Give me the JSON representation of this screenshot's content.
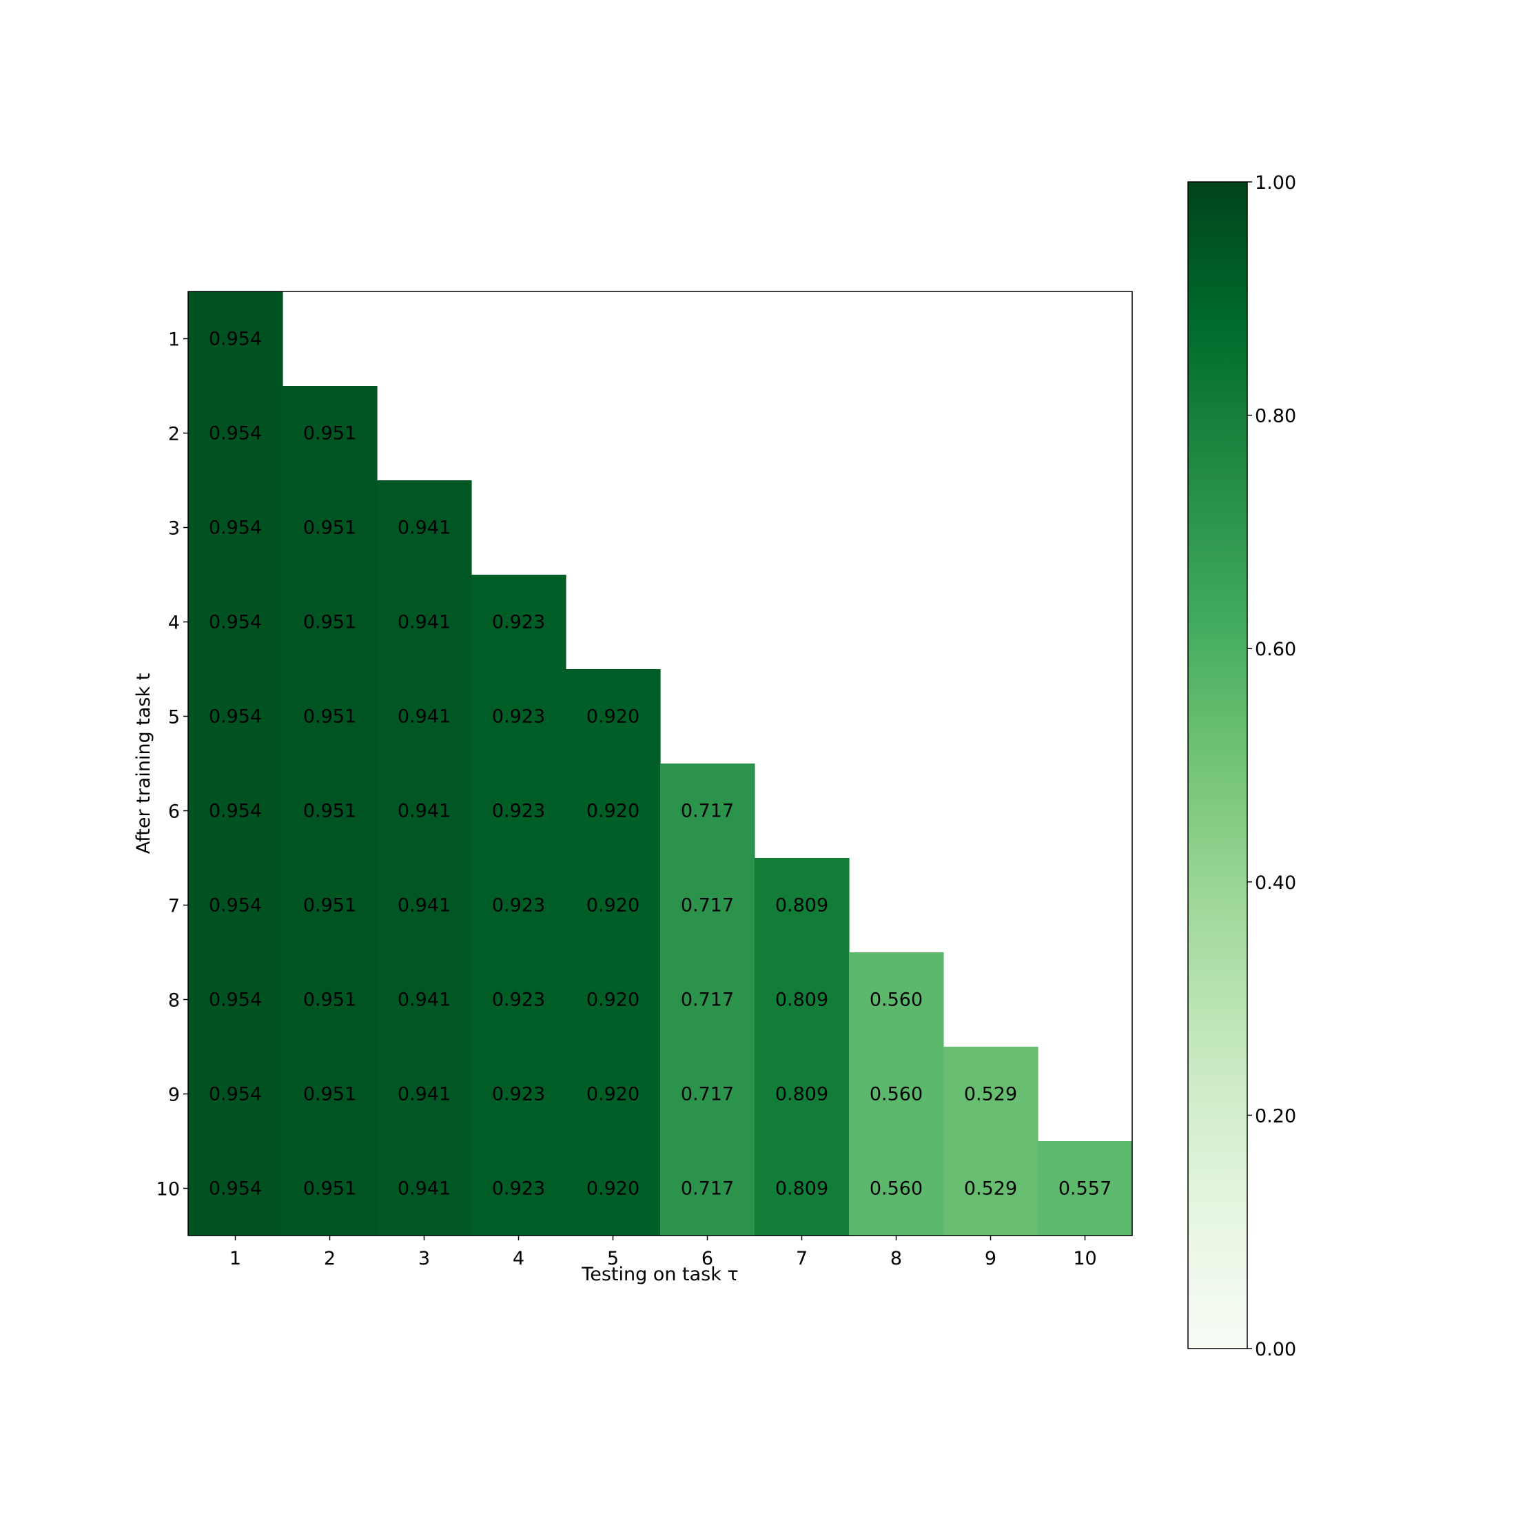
{
  "chart_data": {
    "type": "heatmap",
    "title": "",
    "xlabel": "Testing on task τ",
    "ylabel": "After training task t",
    "x_ticks": [
      "1",
      "2",
      "3",
      "4",
      "5",
      "6",
      "7",
      "8",
      "9",
      "10"
    ],
    "y_ticks": [
      "1",
      "2",
      "3",
      "4",
      "5",
      "6",
      "7",
      "8",
      "9",
      "10"
    ],
    "colormap": "Greens",
    "vmin": 0,
    "vmax": 1,
    "colorbar_ticks": [
      "0.00",
      "0.20",
      "0.40",
      "0.60",
      "0.80",
      "1.00"
    ],
    "colorbar_tick_values": [
      0,
      0.2,
      0.4,
      0.6,
      0.8,
      1.0
    ],
    "values": [
      [
        0.954,
        null,
        null,
        null,
        null,
        null,
        null,
        null,
        null,
        null
      ],
      [
        0.954,
        0.951,
        null,
        null,
        null,
        null,
        null,
        null,
        null,
        null
      ],
      [
        0.954,
        0.951,
        0.941,
        null,
        null,
        null,
        null,
        null,
        null,
        null
      ],
      [
        0.954,
        0.951,
        0.941,
        0.923,
        null,
        null,
        null,
        null,
        null,
        null
      ],
      [
        0.954,
        0.951,
        0.941,
        0.923,
        0.92,
        null,
        null,
        null,
        null,
        null
      ],
      [
        0.954,
        0.951,
        0.941,
        0.923,
        0.92,
        0.717,
        null,
        null,
        null,
        null
      ],
      [
        0.954,
        0.951,
        0.941,
        0.923,
        0.92,
        0.717,
        0.809,
        null,
        null,
        null
      ],
      [
        0.954,
        0.951,
        0.941,
        0.923,
        0.92,
        0.717,
        0.809,
        0.56,
        null,
        null
      ],
      [
        0.954,
        0.951,
        0.941,
        0.923,
        0.92,
        0.717,
        0.809,
        0.56,
        0.529,
        null
      ],
      [
        0.954,
        0.951,
        0.941,
        0.923,
        0.92,
        0.717,
        0.809,
        0.56,
        0.529,
        0.557
      ]
    ]
  }
}
